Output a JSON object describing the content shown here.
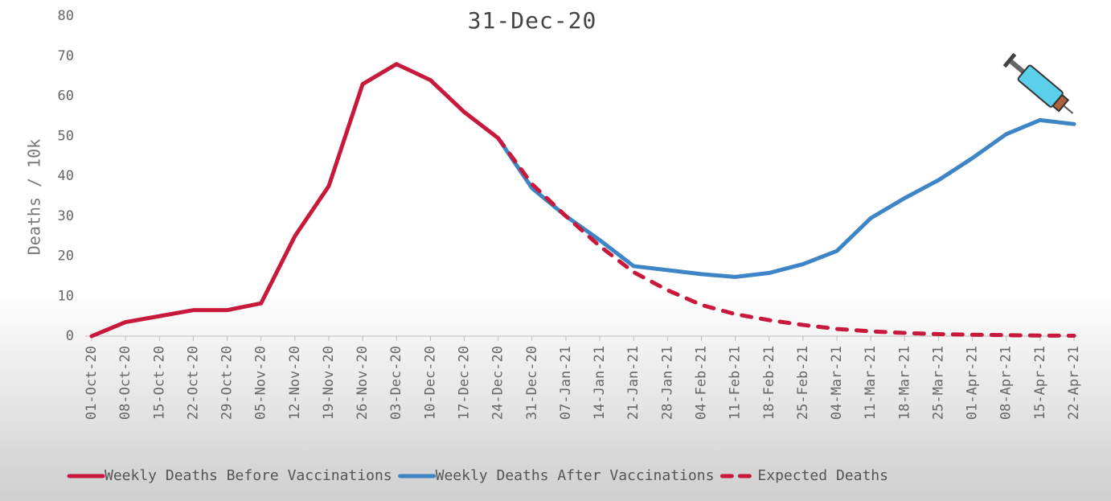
{
  "chart_data": {
    "type": "line",
    "title": "31-Dec-20",
    "y_label": "Deaths / 10k",
    "categories": [
      "01-Oct-20",
      "08-Oct-20",
      "15-Oct-20",
      "22-Oct-20",
      "29-Oct-20",
      "05-Nov-20",
      "12-Nov-20",
      "19-Nov-20",
      "26-Nov-20",
      "03-Dec-20",
      "10-Dec-20",
      "17-Dec-20",
      "24-Dec-20",
      "31-Dec-20",
      "07-Jan-21",
      "14-Jan-21",
      "21-Jan-21",
      "28-Jan-21",
      "04-Feb-21",
      "11-Feb-21",
      "18-Feb-21",
      "25-Feb-21",
      "04-Mar-21",
      "11-Mar-21",
      "18-Mar-21",
      "25-Mar-21",
      "01-Apr-21",
      "08-Apr-21",
      "15-Apr-21",
      "22-Apr-21"
    ],
    "series": [
      {
        "name": "Weekly Deaths Before Vaccinations",
        "color": "#c8193c",
        "dashed": false,
        "values": [
          0,
          3.5,
          5,
          6.5,
          6.5,
          8.2,
          25,
          37.5,
          63,
          68,
          64,
          56,
          49.5,
          null,
          null,
          null,
          null,
          null,
          null,
          null,
          null,
          null,
          null,
          null,
          null,
          null,
          null,
          null,
          null,
          null
        ]
      },
      {
        "name": "Weekly Deaths After Vaccinations",
        "color": "#3d85c6",
        "dashed": false,
        "values": [
          null,
          null,
          null,
          null,
          null,
          null,
          null,
          null,
          null,
          null,
          null,
          null,
          49.5,
          37,
          30,
          24,
          17.5,
          16.5,
          15.5,
          14.8,
          15.8,
          18,
          21.3,
          29.5,
          34.5,
          39,
          44.5,
          50.5,
          54,
          53
        ]
      },
      {
        "name": "Expected Deaths",
        "color": "#c8193c",
        "dashed": true,
        "values": [
          null,
          null,
          null,
          null,
          null,
          null,
          null,
          null,
          null,
          null,
          null,
          null,
          49.5,
          38,
          30,
          22.5,
          16,
          11.5,
          7.8,
          5.5,
          4,
          2.8,
          1.8,
          1.2,
          0.8,
          0.5,
          0.35,
          0.25,
          0.15,
          0.1
        ]
      }
    ],
    "ylim": [
      0,
      80
    ],
    "yticks": [
      0,
      10,
      20,
      30,
      40,
      50,
      60,
      70,
      80
    ],
    "legend": "bottom"
  }
}
